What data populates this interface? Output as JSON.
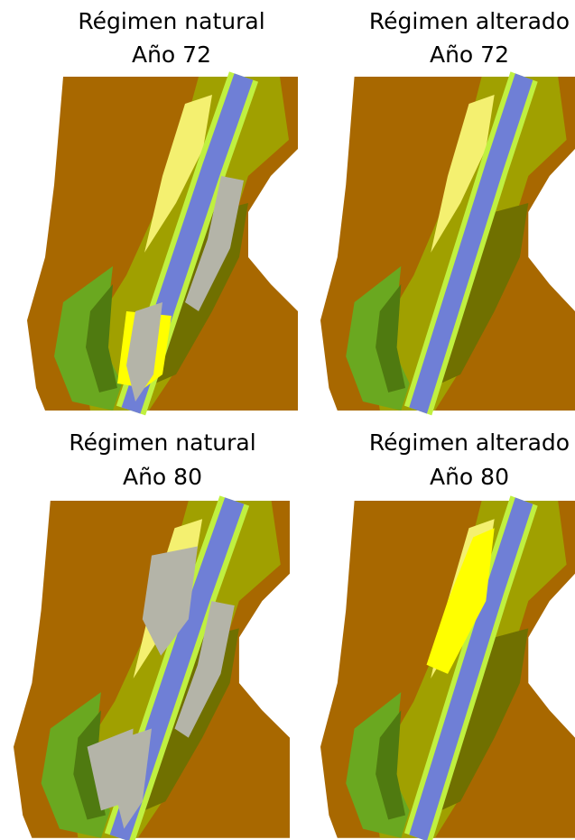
{
  "panels": [
    {
      "title": "Régimen natural",
      "subtitle": "Año 72"
    },
    {
      "title": "Régimen alterado",
      "subtitle": "Año 72"
    },
    {
      "title": "Régimen natural",
      "subtitle": "Año 80"
    },
    {
      "title": "Régimen alterado",
      "subtitle": "Año 80"
    }
  ]
}
